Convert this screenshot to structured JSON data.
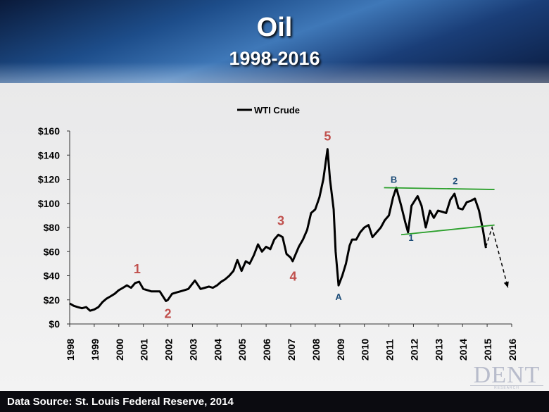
{
  "header": {
    "title": "Oil",
    "subtitle": "1998-2016"
  },
  "footer": {
    "source": "Data Source: St. Louis Federal Reserve, 2014"
  },
  "logo": {
    "text": "DENT",
    "subtext": "RESEARCH"
  },
  "colors": {
    "series": "#000000",
    "wave_labels_red": "#c0504d",
    "wave_labels_blue": "#1f4e79",
    "trendline": "#2ca02c"
  },
  "chart_data": {
    "type": "line",
    "title": "",
    "legend": {
      "position": "top",
      "entries": [
        "WTI Crude"
      ]
    },
    "xlabel": "",
    "ylabel": "",
    "xlim": [
      1998,
      2016
    ],
    "ylim": [
      0,
      160
    ],
    "grid": false,
    "x_ticks": [
      "1998",
      "1999",
      "2000",
      "2001",
      "2002",
      "2003",
      "2004",
      "2005",
      "2006",
      "2007",
      "2008",
      "2009",
      "2010",
      "2011",
      "2012",
      "2013",
      "2014",
      "2015",
      "2016"
    ],
    "y_ticks": [
      "$0",
      "$20",
      "$40",
      "$60",
      "$80",
      "$100",
      "$120",
      "$140",
      "$160"
    ],
    "series": [
      {
        "name": "WTI Crude",
        "points": [
          [
            1998.0,
            17
          ],
          [
            1998.17,
            15
          ],
          [
            1998.33,
            14
          ],
          [
            1998.5,
            13
          ],
          [
            1998.67,
            14
          ],
          [
            1998.83,
            11
          ],
          [
            1999.0,
            12
          ],
          [
            1999.17,
            14
          ],
          [
            1999.33,
            18
          ],
          [
            1999.5,
            21
          ],
          [
            1999.67,
            23
          ],
          [
            1999.83,
            25
          ],
          [
            2000.0,
            28
          ],
          [
            2000.17,
            30
          ],
          [
            2000.33,
            32
          ],
          [
            2000.5,
            30
          ],
          [
            2000.67,
            34
          ],
          [
            2000.83,
            35
          ],
          [
            2001.0,
            29
          ],
          [
            2001.17,
            28
          ],
          [
            2001.33,
            27
          ],
          [
            2001.5,
            27
          ],
          [
            2001.67,
            27
          ],
          [
            2001.92,
            19
          ],
          [
            2002.0,
            20
          ],
          [
            2002.17,
            25
          ],
          [
            2002.33,
            26
          ],
          [
            2002.5,
            27
          ],
          [
            2002.67,
            28
          ],
          [
            2002.83,
            29
          ],
          [
            2003.1,
            36
          ],
          [
            2003.33,
            29
          ],
          [
            2003.5,
            30
          ],
          [
            2003.67,
            31
          ],
          [
            2003.83,
            30
          ],
          [
            2004.0,
            32
          ],
          [
            2004.17,
            35
          ],
          [
            2004.33,
            37
          ],
          [
            2004.5,
            40
          ],
          [
            2004.67,
            44
          ],
          [
            2004.83,
            53
          ],
          [
            2005.0,
            44
          ],
          [
            2005.17,
            52
          ],
          [
            2005.33,
            50
          ],
          [
            2005.5,
            57
          ],
          [
            2005.67,
            66
          ],
          [
            2005.83,
            60
          ],
          [
            2006.0,
            64
          ],
          [
            2006.17,
            62
          ],
          [
            2006.33,
            70
          ],
          [
            2006.5,
            74
          ],
          [
            2006.67,
            72
          ],
          [
            2006.83,
            58
          ],
          [
            2007.0,
            55
          ],
          [
            2007.08,
            52
          ],
          [
            2007.33,
            64
          ],
          [
            2007.5,
            70
          ],
          [
            2007.67,
            78
          ],
          [
            2007.83,
            92
          ],
          [
            2008.0,
            95
          ],
          [
            2008.17,
            105
          ],
          [
            2008.33,
            120
          ],
          [
            2008.5,
            145
          ],
          [
            2008.6,
            120
          ],
          [
            2008.75,
            95
          ],
          [
            2008.83,
            60
          ],
          [
            2008.95,
            32
          ],
          [
            2009.1,
            40
          ],
          [
            2009.25,
            50
          ],
          [
            2009.4,
            65
          ],
          [
            2009.5,
            70
          ],
          [
            2009.67,
            70
          ],
          [
            2009.83,
            76
          ],
          [
            2010.0,
            80
          ],
          [
            2010.17,
            82
          ],
          [
            2010.33,
            72
          ],
          [
            2010.5,
            76
          ],
          [
            2010.67,
            80
          ],
          [
            2010.83,
            86
          ],
          [
            2011.0,
            90
          ],
          [
            2011.17,
            105
          ],
          [
            2011.3,
            113
          ],
          [
            2011.5,
            98
          ],
          [
            2011.67,
            84
          ],
          [
            2011.78,
            76
          ],
          [
            2011.92,
            98
          ],
          [
            2012.17,
            106
          ],
          [
            2012.33,
            98
          ],
          [
            2012.5,
            80
          ],
          [
            2012.67,
            94
          ],
          [
            2012.83,
            88
          ],
          [
            2013.0,
            94
          ],
          [
            2013.17,
            93
          ],
          [
            2013.33,
            92
          ],
          [
            2013.5,
            103
          ],
          [
            2013.67,
            108
          ],
          [
            2013.83,
            96
          ],
          [
            2014.0,
            95
          ],
          [
            2014.17,
            101
          ],
          [
            2014.33,
            102
          ],
          [
            2014.5,
            104
          ],
          [
            2014.67,
            94
          ],
          [
            2014.83,
            78
          ],
          [
            2014.95,
            63
          ]
        ]
      }
    ],
    "annotations": {
      "wave_labels": [
        {
          "text": "1",
          "x": 2000.75,
          "y": 42,
          "color": "red"
        },
        {
          "text": "2",
          "x": 2002.0,
          "y": 5,
          "color": "red"
        },
        {
          "text": "3",
          "x": 2006.6,
          "y": 82,
          "color": "red"
        },
        {
          "text": "4",
          "x": 2007.1,
          "y": 36,
          "color": "red"
        },
        {
          "text": "5",
          "x": 2008.5,
          "y": 152,
          "color": "red"
        },
        {
          "text": "A",
          "x": 2008.95,
          "y": 20,
          "color": "blue"
        },
        {
          "text": "B",
          "x": 2011.2,
          "y": 117,
          "color": "blue"
        },
        {
          "text": "2",
          "x": 2013.7,
          "y": 116,
          "color": "blue"
        },
        {
          "text": "1",
          "x": 2011.9,
          "y": 69,
          "color": "blue"
        }
      ],
      "trendlines": [
        {
          "from": [
            2010.8,
            113
          ],
          "to": [
            2015.3,
            111.5
          ]
        },
        {
          "from": [
            2011.5,
            74
          ],
          "to": [
            2015.3,
            82
          ]
        }
      ],
      "projection": [
        [
          2014.95,
          64
        ],
        [
          2015.2,
          80
        ],
        [
          2015.85,
          30
        ]
      ]
    }
  }
}
